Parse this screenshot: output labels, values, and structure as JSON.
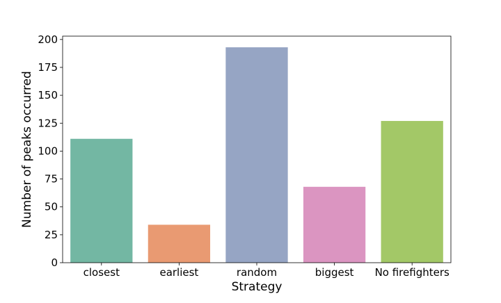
{
  "chart_data": {
    "type": "bar",
    "title": "",
    "xlabel": "Strategy",
    "ylabel": "Number of peaks occurred",
    "categories": [
      "closest",
      "earliest",
      "random",
      "biggest",
      "No firefighters"
    ],
    "values": [
      111,
      34,
      193,
      68,
      127
    ],
    "colors": [
      "#73b7a3",
      "#e99a72",
      "#96a5c4",
      "#db95c1",
      "#a3c867"
    ],
    "ylim": [
      0,
      203
    ],
    "yticks": [
      0,
      25,
      50,
      75,
      100,
      125,
      150,
      175,
      200
    ],
    "grid": false,
    "legend": "none"
  }
}
